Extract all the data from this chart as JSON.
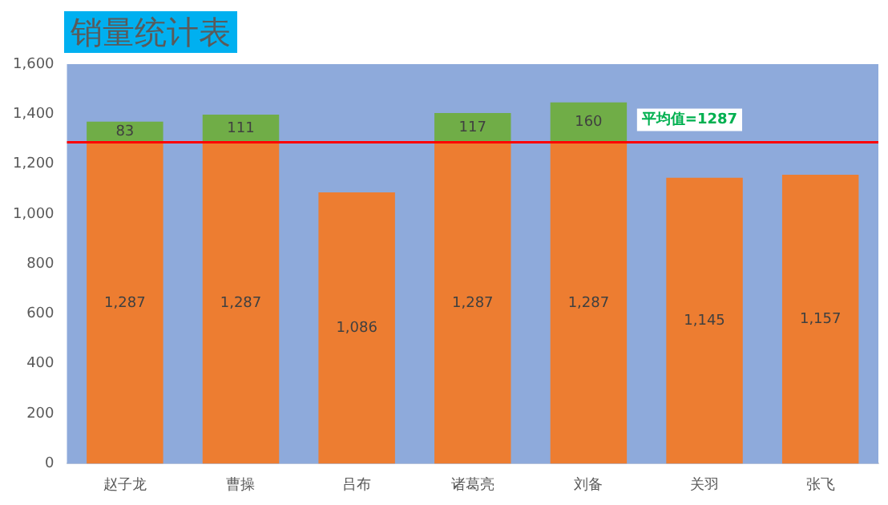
{
  "chart_data": {
    "type": "bar",
    "title": "销量统计表",
    "stacked": true,
    "categories": [
      "赵子龙",
      "曹操",
      "吕布",
      "诸葛亮",
      "刘备",
      "关羽",
      "张飞"
    ],
    "series": [
      {
        "color": "#ed7d31",
        "values": [
          1287,
          1287,
          1086,
          1287,
          1287,
          1145,
          1157
        ],
        "value_labels": [
          "1,287",
          "1,287",
          "1,086",
          "1,287",
          "1,287",
          "1,145",
          "1,157"
        ]
      },
      {
        "color": "#70ad47",
        "values": [
          83,
          111,
          null,
          117,
          160,
          null,
          null
        ],
        "value_labels": [
          "83",
          "111",
          null,
          "117",
          "160",
          null,
          null
        ]
      }
    ],
    "ylim": [
      0,
      1600
    ],
    "yticks": [
      0,
      200,
      400,
      600,
      800,
      {
        "value": 1000,
        "label": "1,000"
      },
      {
        "value": 1200,
        "label": "1,200"
      },
      {
        "value": 1400,
        "label": "1,400"
      },
      {
        "value": 1600,
        "label": "1,600"
      }
    ],
    "ref_lines": [
      {
        "axis": "y",
        "value": 1287,
        "label": "平均值=1287",
        "color": "#ff0000"
      }
    ],
    "bands": [
      {
        "axis": "y",
        "from": 0,
        "to": 1600,
        "color": "#8eaadb"
      }
    ],
    "grid": false,
    "legend": false
  }
}
